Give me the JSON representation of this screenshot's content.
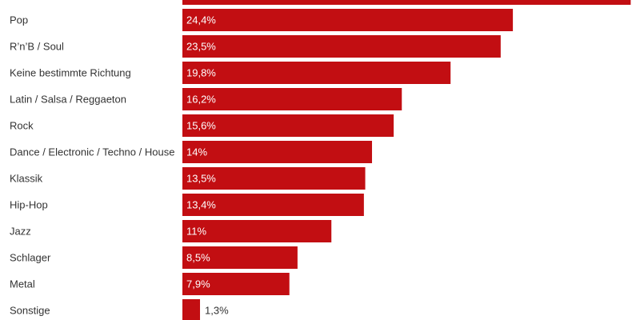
{
  "chart_data": {
    "type": "bar",
    "orientation": "horizontal",
    "color": "#c20e12",
    "categories": [
      null,
      "Pop",
      "R’n’B / Soul",
      "Keine bestimmte Richtung",
      "Latin / Salsa / Reggaeton",
      "Rock",
      "Dance / Electronic / Techno / House",
      "Klassik",
      "Hip-Hop",
      "Jazz",
      "Schlager",
      "Metal",
      "Sonstige"
    ],
    "values": [
      33.1,
      24.4,
      23.5,
      19.8,
      16.2,
      15.6,
      14,
      13.5,
      13.4,
      11,
      8.5,
      7.9,
      1.3
    ],
    "value_labels": [
      null,
      "24,4%",
      "23,5%",
      "19,8%",
      "16,2%",
      "15,6%",
      "14%",
      "13,5%",
      "13,4%",
      "11%",
      "8,5%",
      "7,9%",
      "1,3%"
    ]
  }
}
